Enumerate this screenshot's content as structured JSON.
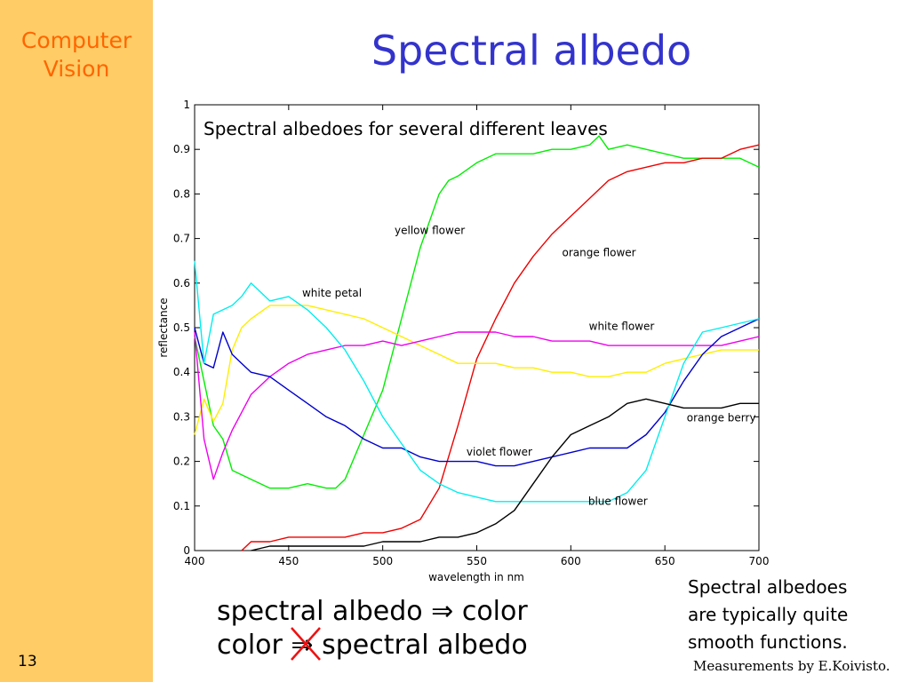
{
  "slide": {
    "brand_line1": "Computer",
    "brand_line2": "Vision",
    "title": "Spectral albedo",
    "page_number": "13",
    "equation_line1_a": "spectral albedo",
    "equation_line1_arrow": "⇒",
    "equation_line1_b": "color",
    "equation_line2_a": "color",
    "equation_line2_arrow": "⇒",
    "equation_line2_b": "spectral albedo",
    "note_line1": "Spectral albedoes",
    "note_line2": "are typically quite",
    "note_line3": "smooth functions.",
    "credit": "Measurements by E.Koivisto."
  },
  "colors": {
    "sidebar": "#ffcc66",
    "brand": "#ff6600",
    "title": "#3333cc",
    "strike": "#ee1111"
  },
  "chart_data": {
    "type": "line",
    "title": "Spectral albedoes for several different leaves",
    "xlabel": "wavelength in nm",
    "ylabel": "reflectance",
    "xlim": [
      400,
      700
    ],
    "ylim": [
      0,
      1
    ],
    "xticks": [
      400,
      450,
      500,
      550,
      600,
      650,
      700
    ],
    "yticks": [
      0,
      0.1,
      0.2,
      0.3,
      0.4,
      0.5,
      0.6,
      0.7,
      0.8,
      0.9,
      1
    ],
    "grid": false,
    "series": [
      {
        "name": "yellow flower",
        "color": "#00ee00",
        "x": [
          400,
          405,
          410,
          415,
          420,
          430,
          440,
          450,
          460,
          470,
          475,
          480,
          490,
          500,
          510,
          520,
          530,
          535,
          540,
          550,
          560,
          570,
          580,
          590,
          600,
          610,
          615,
          620,
          630,
          640,
          650,
          660,
          670,
          680,
          690,
          700
        ],
        "y": [
          0.48,
          0.38,
          0.28,
          0.25,
          0.18,
          0.16,
          0.14,
          0.14,
          0.15,
          0.14,
          0.14,
          0.16,
          0.26,
          0.36,
          0.52,
          0.68,
          0.8,
          0.83,
          0.84,
          0.87,
          0.89,
          0.89,
          0.89,
          0.9,
          0.9,
          0.91,
          0.93,
          0.9,
          0.91,
          0.9,
          0.89,
          0.88,
          0.88,
          0.88,
          0.88,
          0.86
        ]
      },
      {
        "name": "orange flower",
        "color": "#ee0000",
        "x": [
          425,
          430,
          440,
          450,
          460,
          470,
          480,
          490,
          500,
          510,
          520,
          530,
          540,
          550,
          560,
          570,
          580,
          590,
          600,
          610,
          620,
          630,
          640,
          650,
          660,
          670,
          680,
          690,
          700
        ],
        "y": [
          0.0,
          0.02,
          0.02,
          0.03,
          0.03,
          0.03,
          0.03,
          0.04,
          0.04,
          0.05,
          0.07,
          0.14,
          0.28,
          0.43,
          0.52,
          0.6,
          0.66,
          0.71,
          0.75,
          0.79,
          0.83,
          0.85,
          0.86,
          0.87,
          0.87,
          0.88,
          0.88,
          0.9,
          0.91
        ]
      },
      {
        "name": "white petal",
        "color": "#ffee00",
        "x": [
          400,
          405,
          410,
          415,
          420,
          425,
          430,
          440,
          450,
          460,
          470,
          480,
          490,
          500,
          510,
          520,
          530,
          540,
          550,
          560,
          570,
          580,
          590,
          600,
          610,
          620,
          630,
          640,
          650,
          660,
          670,
          680,
          690,
          700
        ],
        "y": [
          0.26,
          0.34,
          0.29,
          0.33,
          0.45,
          0.5,
          0.52,
          0.55,
          0.55,
          0.55,
          0.54,
          0.53,
          0.52,
          0.5,
          0.48,
          0.46,
          0.44,
          0.42,
          0.42,
          0.42,
          0.41,
          0.41,
          0.4,
          0.4,
          0.39,
          0.39,
          0.4,
          0.4,
          0.42,
          0.43,
          0.44,
          0.45,
          0.45,
          0.45
        ]
      },
      {
        "name": "white flower",
        "color": "#ee00ee",
        "x": [
          400,
          405,
          410,
          415,
          420,
          425,
          430,
          440,
          450,
          460,
          470,
          480,
          490,
          500,
          510,
          520,
          530,
          540,
          550,
          560,
          570,
          580,
          590,
          600,
          610,
          620,
          630,
          640,
          650,
          660,
          670,
          680,
          690,
          700
        ],
        "y": [
          0.49,
          0.25,
          0.16,
          0.22,
          0.27,
          0.31,
          0.35,
          0.39,
          0.42,
          0.44,
          0.45,
          0.46,
          0.46,
          0.47,
          0.46,
          0.47,
          0.48,
          0.49,
          0.49,
          0.49,
          0.48,
          0.48,
          0.47,
          0.47,
          0.47,
          0.46,
          0.46,
          0.46,
          0.46,
          0.46,
          0.46,
          0.46,
          0.47,
          0.48
        ]
      },
      {
        "name": "violet flower",
        "color": "#0000cc",
        "x": [
          400,
          405,
          410,
          415,
          420,
          425,
          430,
          440,
          450,
          460,
          470,
          480,
          490,
          500,
          510,
          520,
          530,
          540,
          550,
          560,
          570,
          580,
          590,
          600,
          610,
          620,
          630,
          640,
          650,
          660,
          670,
          680,
          690,
          700
        ],
        "y": [
          0.5,
          0.42,
          0.41,
          0.49,
          0.44,
          0.42,
          0.4,
          0.39,
          0.36,
          0.33,
          0.3,
          0.28,
          0.25,
          0.23,
          0.23,
          0.21,
          0.2,
          0.2,
          0.2,
          0.19,
          0.19,
          0.2,
          0.21,
          0.22,
          0.23,
          0.23,
          0.23,
          0.26,
          0.31,
          0.38,
          0.44,
          0.48,
          0.5,
          0.52
        ]
      },
      {
        "name": "blue flower",
        "color": "#00eeee",
        "x": [
          400,
          405,
          410,
          415,
          420,
          425,
          430,
          440,
          450,
          460,
          470,
          480,
          490,
          500,
          510,
          520,
          530,
          540,
          550,
          560,
          570,
          580,
          590,
          600,
          610,
          620,
          630,
          640,
          650,
          660,
          670,
          680,
          690,
          700
        ],
        "y": [
          0.65,
          0.42,
          0.53,
          0.54,
          0.55,
          0.57,
          0.6,
          0.56,
          0.57,
          0.54,
          0.5,
          0.45,
          0.38,
          0.3,
          0.24,
          0.18,
          0.15,
          0.13,
          0.12,
          0.11,
          0.11,
          0.11,
          0.11,
          0.11,
          0.11,
          0.11,
          0.13,
          0.18,
          0.3,
          0.42,
          0.49,
          0.5,
          0.51,
          0.52
        ]
      },
      {
        "name": "orange berry",
        "color": "#000000",
        "x": [
          430,
          440,
          450,
          460,
          470,
          480,
          490,
          500,
          510,
          520,
          530,
          540,
          550,
          560,
          570,
          580,
          590,
          600,
          610,
          620,
          630,
          640,
          650,
          660,
          670,
          680,
          690,
          700
        ],
        "y": [
          0.0,
          0.01,
          0.01,
          0.01,
          0.01,
          0.01,
          0.01,
          0.02,
          0.02,
          0.02,
          0.03,
          0.03,
          0.04,
          0.06,
          0.09,
          0.15,
          0.21,
          0.26,
          0.28,
          0.3,
          0.33,
          0.34,
          0.33,
          0.32,
          0.32,
          0.32,
          0.33,
          0.33
        ]
      }
    ],
    "annotations": [
      {
        "text": "yellow flower",
        "x": 525,
        "y": 0.71
      },
      {
        "text": "orange flower",
        "x": 615,
        "y": 0.66
      },
      {
        "text": "white petal",
        "x": 473,
        "y": 0.57
      },
      {
        "text": "white flower",
        "x": 627,
        "y": 0.495
      },
      {
        "text": "violet flower",
        "x": 562,
        "y": 0.213
      },
      {
        "text": "blue flower",
        "x": 625,
        "y": 0.103
      },
      {
        "text": "orange berry",
        "x": 680,
        "y": 0.29
      }
    ]
  }
}
